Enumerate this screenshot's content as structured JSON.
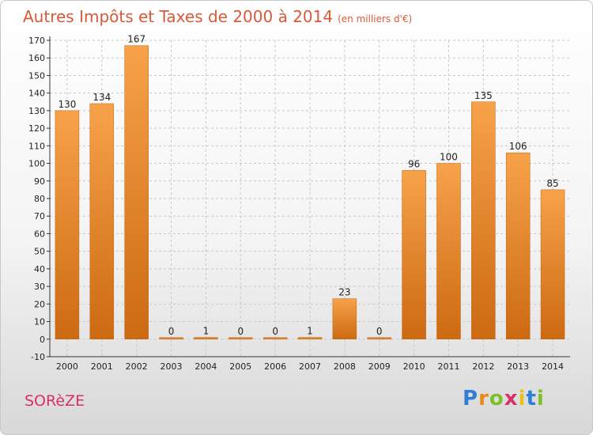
{
  "header": {
    "title": "Autres Impôts et Taxes de 2000 à 2014",
    "unit": "(en milliers d'€)"
  },
  "footer": {
    "commune": "SORèZE",
    "logo_letters": [
      "P",
      "r",
      "o",
      "x",
      "i",
      "t",
      "i"
    ],
    "logo_colors": [
      "#2f7fd6",
      "#e88a1a",
      "#7bbf2a",
      "#d8306a",
      "#e8c21a",
      "#2f7fd6",
      "#7bbf2a"
    ]
  },
  "colors": {
    "bar_top": "#f7a24a",
    "bar_bottom": "#cc6a12",
    "title": "#d85a3a",
    "commune": "#d8306a"
  },
  "chart_data": {
    "type": "bar",
    "title": "Autres Impôts et Taxes de 2000 à 2014",
    "subtitle": "(en milliers d'€)",
    "categories": [
      "2000",
      "2001",
      "2002",
      "2003",
      "2004",
      "2005",
      "2006",
      "2007",
      "2008",
      "2009",
      "2010",
      "2011",
      "2012",
      "2013",
      "2014"
    ],
    "values": [
      130,
      134,
      167,
      0,
      1,
      0,
      0,
      1,
      23,
      0,
      96,
      100,
      135,
      106,
      85
    ],
    "ylim": [
      -10,
      170
    ],
    "yticks": [
      -10,
      0,
      10,
      20,
      30,
      40,
      50,
      60,
      70,
      80,
      90,
      100,
      110,
      120,
      130,
      140,
      150,
      160,
      170
    ],
    "grid": true,
    "xlabel": "",
    "ylabel": ""
  }
}
